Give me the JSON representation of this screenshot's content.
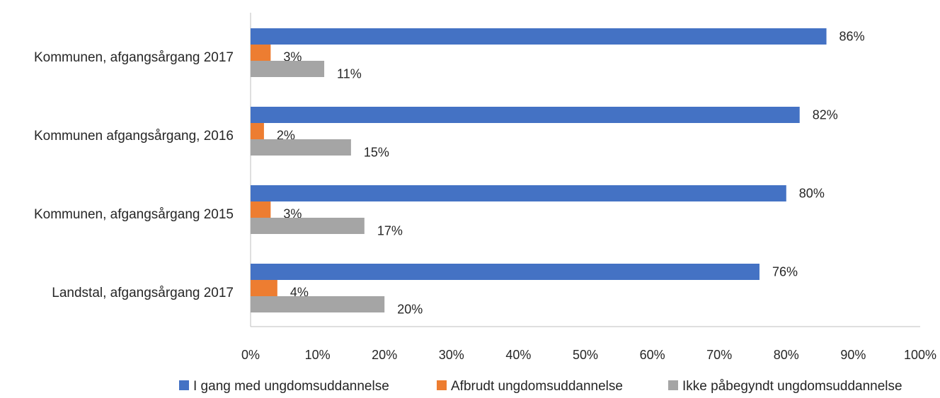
{
  "chart_data": {
    "type": "bar",
    "orientation": "horizontal",
    "categories": [
      "Kommunen, afgangsårgang 2017",
      "Kommunen afgangsårgang, 2016",
      "Kommunen, afgangsårgang 2015",
      "Landstal, afgangsårgang 2017"
    ],
    "series": [
      {
        "name": "I gang med ungdomsuddannelse",
        "color": "#4472C4",
        "values": [
          86,
          82,
          80,
          76
        ],
        "labels": [
          "86%",
          "82%",
          "80%",
          "76%"
        ]
      },
      {
        "name": "Afbrudt ungdomsuddannelse",
        "color": "#ED7D31",
        "values": [
          3,
          2,
          3,
          4
        ],
        "labels": [
          "3%",
          "2%",
          "3%",
          "4%"
        ]
      },
      {
        "name": "Ikke påbegyndt ungdomsuddannelse",
        "color": "#A5A5A5",
        "values": [
          11,
          15,
          17,
          20
        ],
        "labels": [
          "11%",
          "15%",
          "17%",
          "20%"
        ]
      }
    ],
    "xticks": [
      "0%",
      "10%",
      "20%",
      "30%",
      "40%",
      "50%",
      "60%",
      "70%",
      "80%",
      "90%",
      "100%"
    ],
    "xlim": [
      0,
      100
    ],
    "grid": false,
    "legend_position": "bottom",
    "title": "",
    "xlabel": "",
    "ylabel": ""
  }
}
